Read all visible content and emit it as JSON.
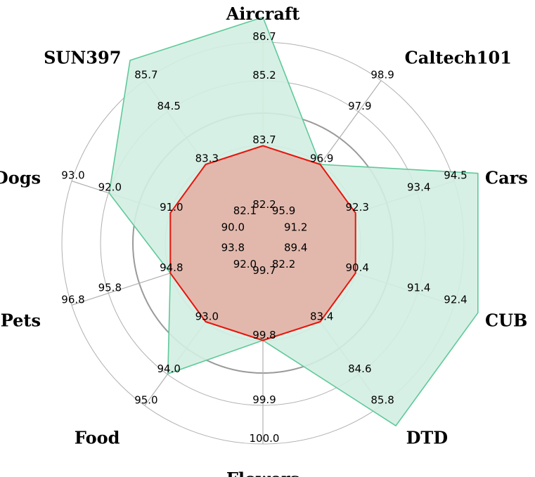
{
  "chart_data": {
    "type": "radar",
    "axes": [
      {
        "name": "Aircraft",
        "ticks": [
          "82.2",
          "83.7",
          "85.2",
          "86.7"
        ]
      },
      {
        "name": "Caltech101",
        "ticks": [
          "95.9",
          "96.9",
          "97.9",
          "98.9"
        ]
      },
      {
        "name": "Cars",
        "ticks": [
          "91.2",
          "92.3",
          "93.4",
          "94.5"
        ]
      },
      {
        "name": "CUB",
        "ticks": [
          "89.4",
          "90.4",
          "91.4",
          "92.4"
        ]
      },
      {
        "name": "DTD",
        "ticks": [
          "82.2",
          "83.4",
          "84.6",
          "85.8"
        ]
      },
      {
        "name": "Flowers",
        "ticks": [
          "99.7",
          "99.8",
          "99.9",
          "100.0"
        ]
      },
      {
        "name": "Food",
        "ticks": [
          "92.0",
          "93.0",
          "94.0",
          "95.0"
        ]
      },
      {
        "name": "Pets",
        "ticks": [
          "93.8",
          "94.8",
          "95.8",
          "96.8"
        ]
      },
      {
        "name": "Dogs",
        "ticks": [
          "90.0",
          "91.0",
          "92.0",
          "93.0"
        ]
      },
      {
        "name": "SUN397",
        "ticks": [
          "82.1",
          "83.3",
          "84.5",
          "85.7"
        ]
      }
    ],
    "series": [
      {
        "values": [
          86.7,
          96.9,
          94.5,
          92.4,
          85.8,
          99.8,
          94.0,
          94.8,
          92.0,
          85.7
        ],
        "line_color": "#5fc99a",
        "fill_color": "#d3eee2"
      },
      {
        "values": [
          83.7,
          96.9,
          92.3,
          90.4,
          83.4,
          99.8,
          93.0,
          94.8,
          91.0,
          83.3
        ],
        "line_color": "#e8140c",
        "fill_color": "#e3b1a6"
      }
    ],
    "grid": true
  }
}
